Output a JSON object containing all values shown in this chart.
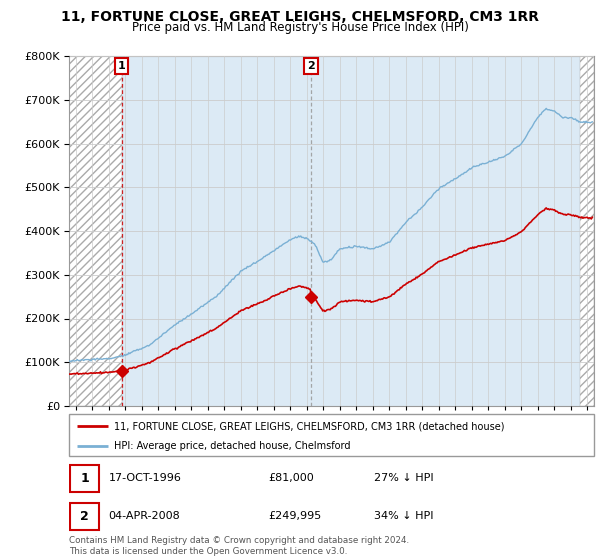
{
  "title": "11, FORTUNE CLOSE, GREAT LEIGHS, CHELMSFORD, CM3 1RR",
  "subtitle": "Price paid vs. HM Land Registry's House Price Index (HPI)",
  "legend_label_red": "11, FORTUNE CLOSE, GREAT LEIGHS, CHELMSFORD, CM3 1RR (detached house)",
  "legend_label_blue": "HPI: Average price, detached house, Chelmsford",
  "footer": "Contains HM Land Registry data © Crown copyright and database right 2024.\nThis data is licensed under the Open Government Licence v3.0.",
  "point1_date": "17-OCT-1996",
  "point1_price": "£81,000",
  "point1_hpi": "27% ↓ HPI",
  "point1_year": 1996.8,
  "point1_value": 81000,
  "point2_date": "04-APR-2008",
  "point2_price": "£249,995",
  "point2_hpi": "34% ↓ HPI",
  "point2_year": 2008.25,
  "point2_value": 249995,
  "ylim_max": 800000,
  "xlim_start": 1993.6,
  "xlim_end": 2025.4,
  "color_red": "#cc0000",
  "color_blue": "#7ab0d4",
  "color_fill": "#dceaf5",
  "background_color": "#ffffff",
  "grid_color": "#cccccc"
}
